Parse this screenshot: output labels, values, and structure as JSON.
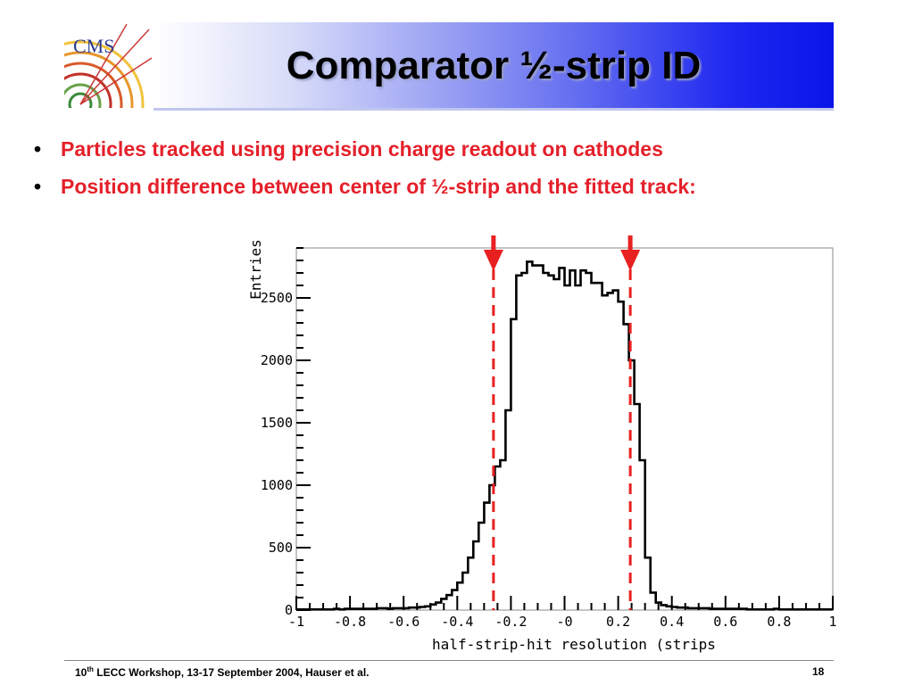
{
  "slide": {
    "title": "Comparator ½-strip ID",
    "logo_text": "CMS",
    "bullets": [
      "Particles tracked using precision charge readout on cathodes",
      "Position difference between center of ½-strip and the fitted track:"
    ],
    "footer": {
      "prefix": "10",
      "superscript": "th",
      "rest": " LECC Workshop, 13-17 September 2004, Hauser et al.",
      "page_number": "18"
    }
  },
  "colors": {
    "text_bullet": "#e4202a",
    "marker": "#e82020",
    "histogram": "#000000"
  },
  "chart_data": {
    "type": "bar",
    "xlabel": "half-strip-hit resolution (strips",
    "ylabel": "Entries",
    "xlim": [
      -1,
      1
    ],
    "ylim": [
      0,
      2900
    ],
    "x_ticks": [
      "-1",
      "-0.8",
      "-0.6",
      "-0.4",
      "-0.2",
      "-0",
      "0.2",
      "0.4",
      "0.6",
      "0.8",
      "1"
    ],
    "y_ticks": [
      "0",
      "500",
      "1000",
      "1500",
      "2000",
      "2500"
    ],
    "bin_width": 0.02,
    "bin_edges_start": -1,
    "values": [
      5,
      5,
      5,
      5,
      5,
      5,
      5,
      10,
      5,
      10,
      10,
      10,
      10,
      10,
      10,
      15,
      15,
      10,
      15,
      15,
      15,
      20,
      20,
      25,
      30,
      45,
      60,
      90,
      120,
      160,
      220,
      300,
      420,
      550,
      700,
      860,
      1000,
      1150,
      1200,
      1600,
      2330,
      2680,
      2700,
      2790,
      2760,
      2760,
      2700,
      2680,
      2650,
      2740,
      2600,
      2720,
      2600,
      2720,
      2700,
      2620,
      2620,
      2520,
      2540,
      2560,
      2470,
      2290,
      2000,
      1650,
      1200,
      420,
      140,
      60,
      40,
      30,
      25,
      20,
      20,
      15,
      15,
      15,
      15,
      10,
      10,
      10,
      10,
      10,
      10,
      10,
      5,
      5,
      5,
      5,
      5,
      10,
      5,
      5,
      5,
      5,
      5,
      5,
      5,
      5,
      5,
      5
    ],
    "annotations": [
      {
        "type": "dashed-line-with-arrow",
        "x": -0.265
      },
      {
        "type": "dashed-line-with-arrow",
        "x": 0.245
      }
    ]
  }
}
